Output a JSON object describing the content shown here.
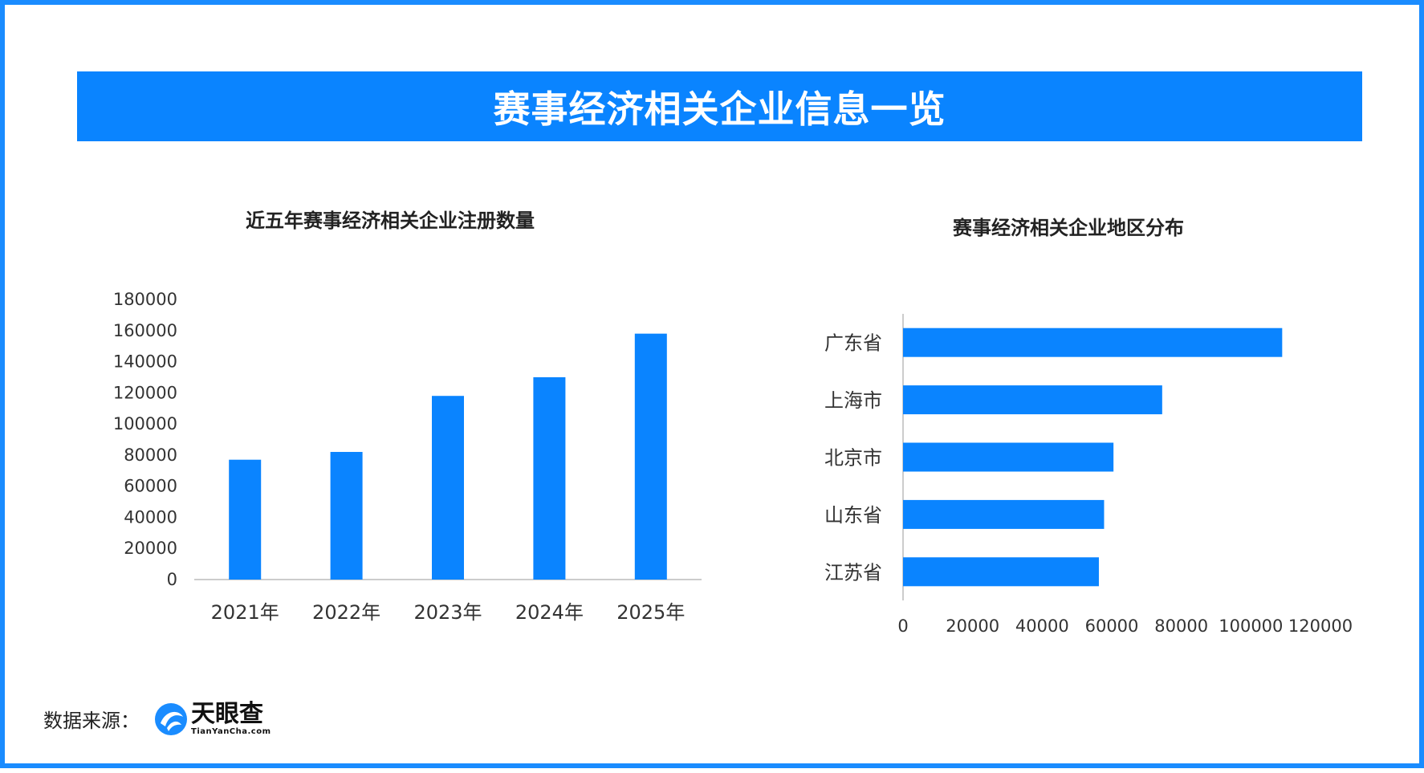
{
  "banner": {
    "title": "赛事经济相关企业信息一览"
  },
  "colors": {
    "accent": "#0a84ff",
    "frame": "#1a8cff",
    "axis": "#cccccc"
  },
  "chart_data": [
    {
      "type": "bar",
      "title": "近五年赛事经济相关企业注册数量",
      "categories": [
        "2021年",
        "2022年",
        "2023年",
        "2024年",
        "2025年"
      ],
      "values": [
        77000,
        82000,
        118000,
        130000,
        158000
      ],
      "ylim": [
        0,
        180000
      ],
      "yticks": [
        0,
        20000,
        40000,
        60000,
        80000,
        100000,
        120000,
        140000,
        160000,
        180000
      ],
      "grid": false,
      "legend": "none"
    },
    {
      "type": "bar",
      "orientation": "horizontal",
      "title": "赛事经济相关企业地区分布",
      "categories": [
        "广东省",
        "上海市",
        "北京市",
        "山东省",
        "江苏省"
      ],
      "values": [
        109000,
        74500,
        60500,
        57800,
        56300
      ],
      "xlim": [
        0,
        120000
      ],
      "xticks": [
        0,
        20000,
        40000,
        60000,
        80000,
        100000,
        120000
      ],
      "grid": false,
      "legend": "none"
    }
  ],
  "footer": {
    "source_label": "数据来源：",
    "logo_icon": "tianyancha-logo-icon",
    "logo_cn": "天眼查",
    "logo_en": "TianYanCha.com"
  }
}
